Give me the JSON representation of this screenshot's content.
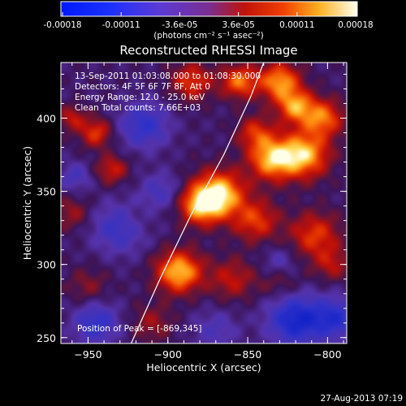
{
  "colorbar": {
    "tick_labels": [
      "-0.00018",
      "-0.00011",
      "-3.6e-05",
      "3.6e-05",
      "0.00011",
      "0.00018"
    ],
    "units": "(photons cm⁻² s⁻¹ asec⁻²)",
    "range": [
      -0.00018,
      0.00018
    ]
  },
  "chart_data": {
    "type": "heatmap",
    "title": "Reconstructed RHESSI Image",
    "xlabel": "Heliocentric X (arcsec)",
    "ylabel": "Heliocentric Y (arcsec)",
    "xlim": [
      -967,
      -788
    ],
    "ylim": [
      246,
      438
    ],
    "xticks": [
      -950,
      -900,
      -850,
      -800
    ],
    "xtick_labels": [
      "−950",
      "−900",
      "−850",
      "−800"
    ],
    "yticks": [
      250,
      300,
      350,
      400
    ],
    "ytick_labels": [
      "250",
      "300",
      "350",
      "400"
    ],
    "info_lines": [
      "13-Sep-2011 01:03:08.000 to 01:08:30.000",
      "Detectors: 4F 5F 6F 7F 8F, Att 0",
      "Energy Range: 12.0 - 25.0 keV",
      "Clean     Total counts: 7.66E+03"
    ],
    "peak_label": "Position of Peak = [-869,345]",
    "peak_position": [
      -869,
      345
    ],
    "limb_curve": [
      [
        -923,
        246
      ],
      [
        -905,
        290
      ],
      [
        -885,
        335
      ],
      [
        -865,
        375
      ],
      [
        -848,
        415
      ],
      [
        -840,
        438
      ]
    ],
    "sources": [
      [
        -868,
        348,
        11,
        1.0
      ],
      [
        -893,
        295,
        10,
        0.92
      ],
      [
        -880,
        340,
        9,
        0.75
      ],
      [
        -835,
        372,
        10,
        0.85
      ],
      [
        -815,
        375,
        11,
        0.9
      ],
      [
        -803,
        400,
        9,
        0.7
      ],
      [
        -820,
        408,
        8,
        0.75
      ],
      [
        -845,
        390,
        8,
        0.5
      ],
      [
        -845,
        330,
        10,
        0.55
      ],
      [
        -808,
        320,
        11,
        0.55
      ],
      [
        -797,
        300,
        8,
        0.35
      ],
      [
        -830,
        425,
        9,
        0.8
      ],
      [
        -855,
        425,
        8,
        0.7
      ],
      [
        -885,
        425,
        9,
        0.55
      ],
      [
        -945,
        390,
        7,
        0.55
      ],
      [
        -935,
        365,
        7,
        0.45
      ],
      [
        -960,
        400,
        6,
        0.4
      ],
      [
        -860,
        290,
        10,
        0.4
      ],
      [
        -830,
        290,
        9,
        0.3
      ],
      [
        -960,
        335,
        8,
        0.3
      ],
      [
        -950,
        285,
        9,
        0.25
      ],
      [
        -910,
        260,
        9,
        0.3
      ],
      [
        -920,
        330,
        8,
        0.15
      ]
    ],
    "negative_sources": [
      [
        -915,
        395,
        11,
        -0.55
      ],
      [
        -930,
        325,
        12,
        -0.5
      ],
      [
        -945,
        260,
        10,
        -0.55
      ],
      [
        -820,
        262,
        12,
        -0.8
      ],
      [
        -795,
        263,
        10,
        -0.6
      ],
      [
        -830,
        300,
        8,
        -0.35
      ],
      [
        -870,
        255,
        10,
        -0.3
      ],
      [
        -958,
        360,
        7,
        -0.35
      ],
      [
        -905,
        350,
        9,
        -0.35
      ]
    ]
  },
  "footer": {
    "timestamp": "27-Aug-2013 07:19"
  }
}
